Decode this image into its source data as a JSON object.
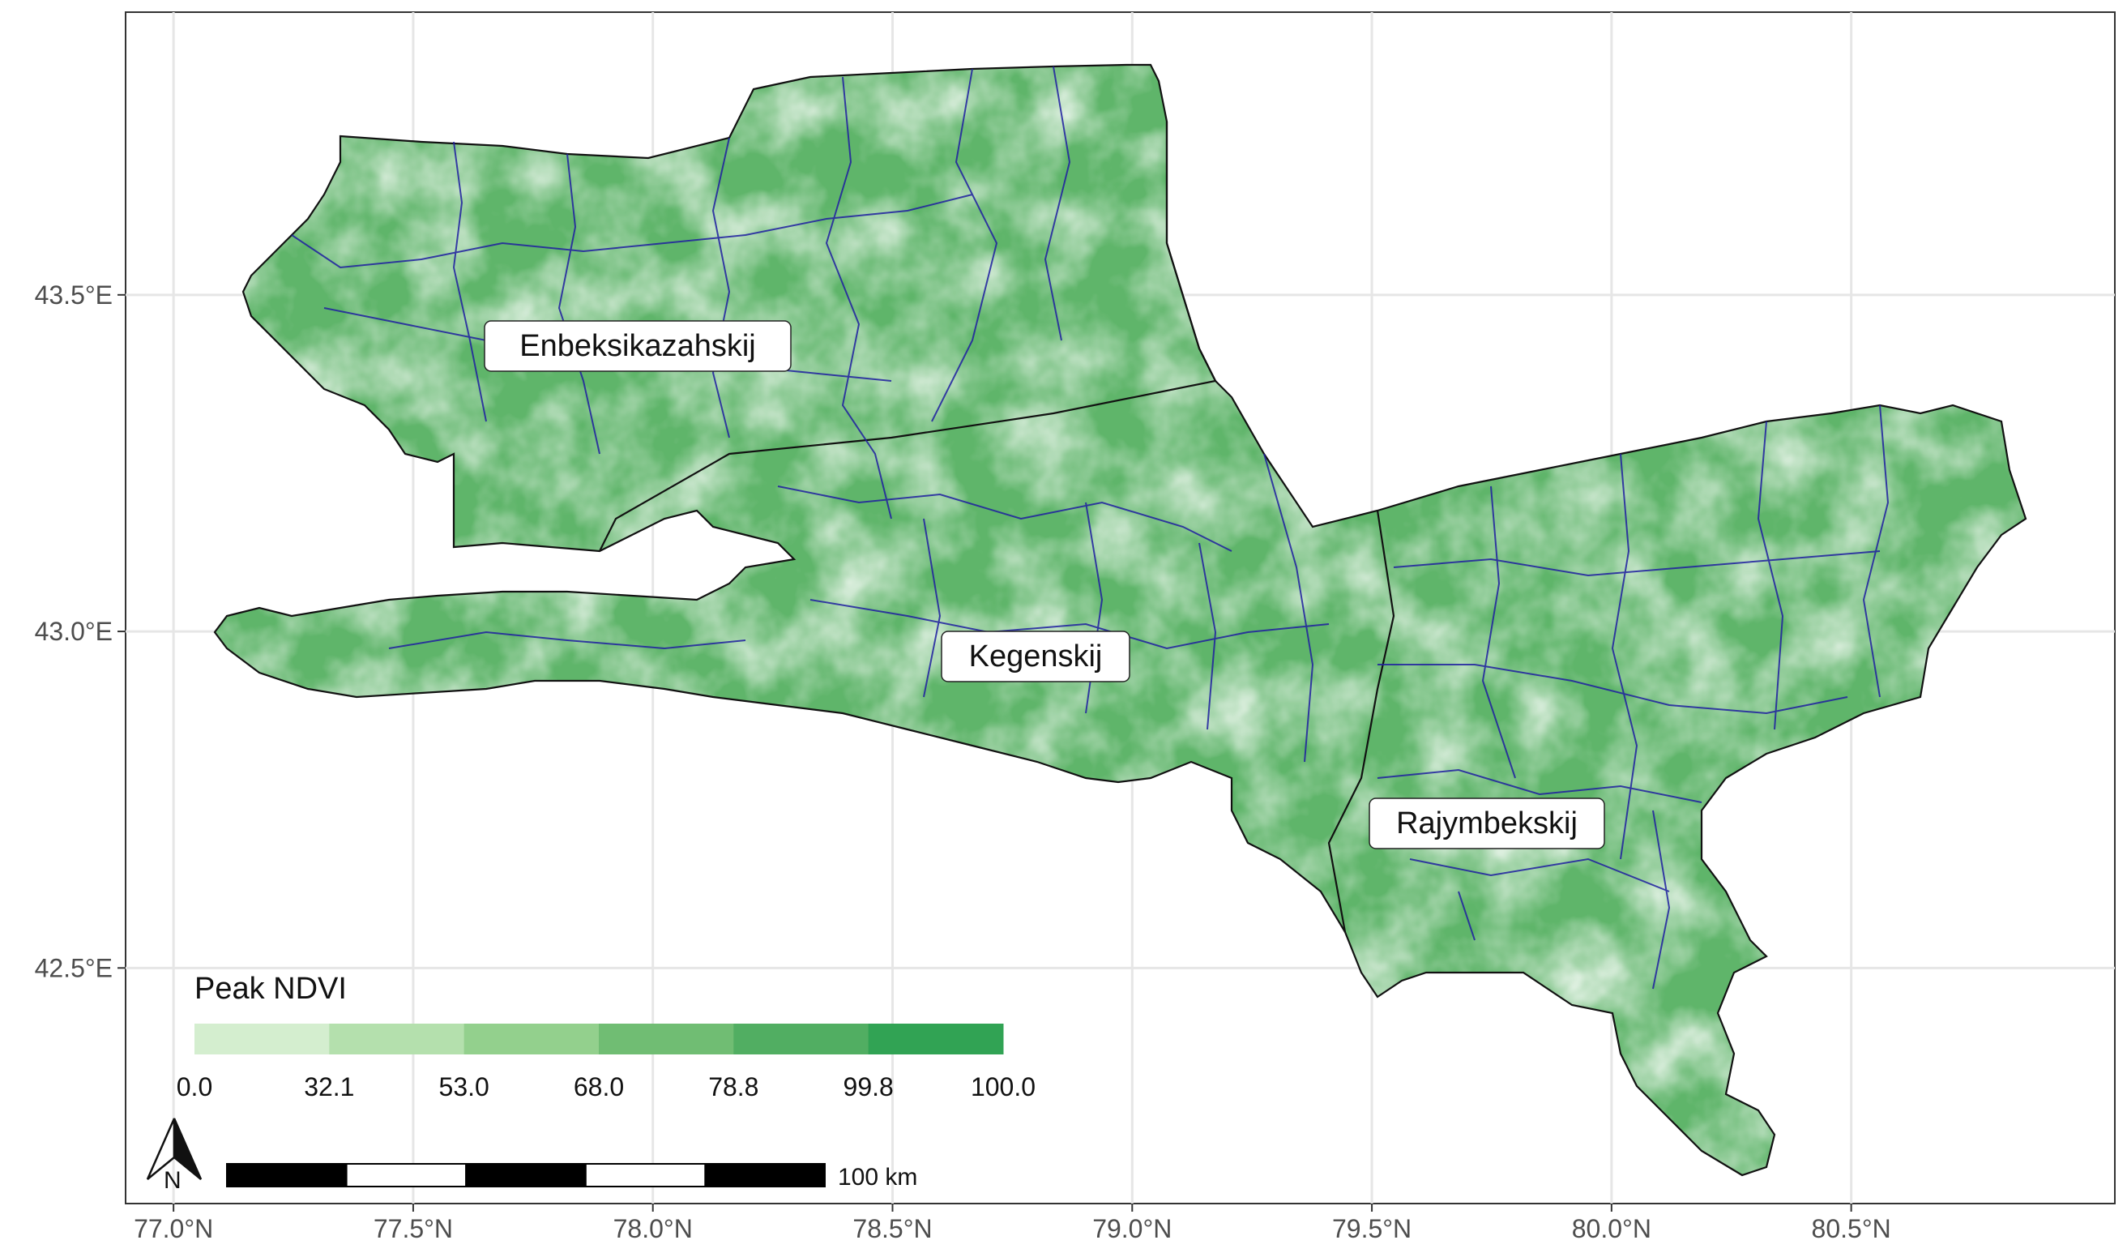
{
  "map": {
    "x_ticks": [
      {
        "value": 77.0,
        "label": "77.0°N"
      },
      {
        "value": 77.5,
        "label": "77.5°N"
      },
      {
        "value": 78.0,
        "label": "78.0°N"
      },
      {
        "value": 78.5,
        "label": "78.5°N"
      },
      {
        "value": 79.0,
        "label": "79.0°N"
      },
      {
        "value": 79.5,
        "label": "79.5°N"
      },
      {
        "value": 80.0,
        "label": "80.0°N"
      },
      {
        "value": 80.5,
        "label": "80.5°N"
      }
    ],
    "y_ticks": [
      {
        "value": 43.5,
        "label": "43.5°E"
      },
      {
        "value": 43.0,
        "label": "43.0°E"
      },
      {
        "value": 42.5,
        "label": "42.5°E"
      }
    ],
    "x_range": [
      76.9,
      81.05
    ],
    "y_range": [
      42.15,
      43.92
    ],
    "grid": true,
    "regions": [
      {
        "name": "Enbeksikazahskij"
      },
      {
        "name": "Kegenskij"
      },
      {
        "name": "Rajymbekskij"
      }
    ],
    "fill_color": "#5fb56a",
    "boundary_color": "#1f1fa0"
  },
  "legend": {
    "title": "Peak NDVI",
    "breaks": [
      "0.0",
      "32.1",
      "53.0",
      "68.0",
      "78.8",
      "99.8",
      "100.0"
    ],
    "colors": [
      "#d4eecf",
      "#b4e0ad",
      "#93d08d",
      "#70bd73",
      "#51ae62",
      "#31a354"
    ],
    "position": "bottom-left"
  },
  "north_arrow": {
    "label": "N"
  },
  "scale_bar": {
    "label": "100 km",
    "segments": 5
  }
}
